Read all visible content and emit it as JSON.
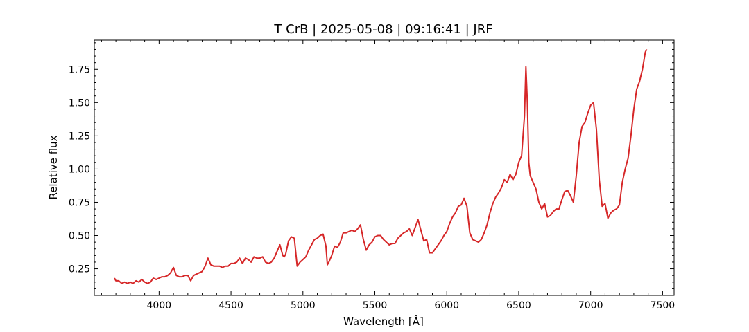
{
  "chart_data": {
    "type": "line",
    "title": "T CrB | 2025-05-08 | 09:16:41 | JRF",
    "xlabel": "Wavelength [Å]",
    "ylabel": "Relative flux",
    "xlim": [
      3550,
      7580
    ],
    "ylim": [
      0.05,
      1.97
    ],
    "xticks": [
      4000,
      4500,
      5000,
      5500,
      6000,
      6500,
      7000,
      7500
    ],
    "yticks": [
      0.25,
      0.5,
      0.75,
      1.0,
      1.25,
      1.5,
      1.75
    ],
    "xtick_labels": [
      "4000",
      "4500",
      "5000",
      "5500",
      "6000",
      "6500",
      "7000",
      "7500"
    ],
    "ytick_labels": [
      "0.25",
      "0.50",
      "0.75",
      "1.00",
      "1.25",
      "1.50",
      "1.75"
    ],
    "grid": false,
    "series": [
      {
        "color": "#d62728",
        "x": [
          3690,
          3700,
          3720,
          3740,
          3760,
          3780,
          3800,
          3820,
          3840,
          3860,
          3880,
          3900,
          3920,
          3940,
          3960,
          3980,
          4000,
          4020,
          4040,
          4060,
          4080,
          4100,
          4120,
          4140,
          4160,
          4180,
          4200,
          4220,
          4240,
          4260,
          4280,
          4300,
          4320,
          4340,
          4360,
          4380,
          4400,
          4420,
          4440,
          4460,
          4480,
          4500,
          4520,
          4540,
          4560,
          4580,
          4600,
          4620,
          4640,
          4660,
          4680,
          4700,
          4720,
          4740,
          4760,
          4780,
          4800,
          4820,
          4840,
          4860,
          4870,
          4880,
          4900,
          4920,
          4940,
          4960,
          4980,
          5000,
          5020,
          5040,
          5060,
          5080,
          5100,
          5120,
          5140,
          5160,
          5170,
          5180,
          5200,
          5220,
          5240,
          5260,
          5280,
          5300,
          5320,
          5340,
          5360,
          5380,
          5400,
          5420,
          5440,
          5460,
          5480,
          5500,
          5520,
          5540,
          5560,
          5580,
          5600,
          5620,
          5640,
          5660,
          5680,
          5700,
          5720,
          5740,
          5760,
          5780,
          5800,
          5820,
          5840,
          5860,
          5880,
          5900,
          5920,
          5940,
          5960,
          5980,
          6000,
          6020,
          6040,
          6060,
          6080,
          6100,
          6120,
          6140,
          6160,
          6180,
          6200,
          6220,
          6240,
          6260,
          6280,
          6300,
          6320,
          6340,
          6360,
          6380,
          6400,
          6420,
          6440,
          6460,
          6480,
          6500,
          6520,
          6540,
          6550,
          6560,
          6570,
          6580,
          6600,
          6620,
          6640,
          6660,
          6680,
          6700,
          6720,
          6740,
          6760,
          6780,
          6800,
          6820,
          6840,
          6860,
          6880,
          6900,
          6920,
          6940,
          6960,
          6980,
          7000,
          7020,
          7040,
          7060,
          7080,
          7100,
          7120,
          7140,
          7160,
          7180,
          7200,
          7220,
          7240,
          7260,
          7280,
          7300,
          7320,
          7340,
          7360,
          7380,
          7390
        ],
        "y": [
          0.18,
          0.16,
          0.16,
          0.14,
          0.15,
          0.14,
          0.15,
          0.14,
          0.16,
          0.15,
          0.17,
          0.15,
          0.14,
          0.15,
          0.18,
          0.17,
          0.18,
          0.19,
          0.19,
          0.2,
          0.22,
          0.26,
          0.2,
          0.19,
          0.19,
          0.2,
          0.2,
          0.16,
          0.2,
          0.21,
          0.22,
          0.23,
          0.27,
          0.33,
          0.28,
          0.27,
          0.27,
          0.27,
          0.26,
          0.27,
          0.27,
          0.29,
          0.29,
          0.3,
          0.33,
          0.29,
          0.33,
          0.32,
          0.3,
          0.34,
          0.33,
          0.33,
          0.34,
          0.3,
          0.29,
          0.3,
          0.33,
          0.38,
          0.43,
          0.35,
          0.34,
          0.36,
          0.46,
          0.49,
          0.48,
          0.27,
          0.3,
          0.32,
          0.34,
          0.39,
          0.43,
          0.47,
          0.48,
          0.5,
          0.51,
          0.42,
          0.28,
          0.3,
          0.35,
          0.42,
          0.41,
          0.45,
          0.52,
          0.52,
          0.53,
          0.54,
          0.53,
          0.55,
          0.58,
          0.47,
          0.39,
          0.43,
          0.45,
          0.49,
          0.5,
          0.5,
          0.47,
          0.45,
          0.43,
          0.44,
          0.44,
          0.48,
          0.5,
          0.52,
          0.53,
          0.55,
          0.5,
          0.56,
          0.62,
          0.54,
          0.46,
          0.47,
          0.37,
          0.37,
          0.4,
          0.43,
          0.46,
          0.5,
          0.53,
          0.59,
          0.64,
          0.67,
          0.72,
          0.73,
          0.78,
          0.72,
          0.52,
          0.47,
          0.46,
          0.45,
          0.47,
          0.52,
          0.58,
          0.67,
          0.74,
          0.79,
          0.82,
          0.86,
          0.92,
          0.9,
          0.96,
          0.92,
          0.96,
          1.05,
          1.1,
          1.4,
          1.77,
          1.5,
          1.05,
          0.95,
          0.9,
          0.85,
          0.75,
          0.7,
          0.74,
          0.64,
          0.65,
          0.68,
          0.7,
          0.7,
          0.77,
          0.83,
          0.84,
          0.8,
          0.75,
          0.95,
          1.2,
          1.32,
          1.35,
          1.42,
          1.48,
          1.5,
          1.3,
          0.92,
          0.72,
          0.74,
          0.63,
          0.67,
          0.69,
          0.7,
          0.73,
          0.9,
          1.0,
          1.08,
          1.25,
          1.45,
          1.6,
          1.66,
          1.75,
          1.88,
          1.9
        ]
      }
    ]
  }
}
